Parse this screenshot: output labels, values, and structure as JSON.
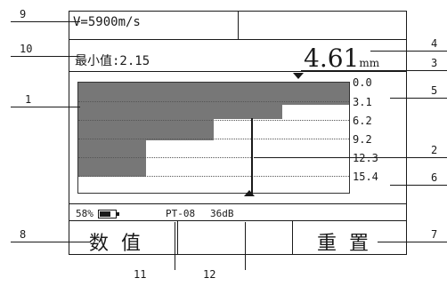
{
  "header": {
    "velocity": "V=5900m/s",
    "min_value": "最小值:2.15",
    "thickness_value": "4.61",
    "thickness_unit": "mm"
  },
  "scale": {
    "labels": [
      "0.0",
      "3.1",
      "6.2",
      "9.2",
      "12.3",
      "15.4"
    ]
  },
  "status": {
    "battery_percent": "58%",
    "probe": "PT-08",
    "gain": "36dB"
  },
  "softkeys": {
    "left": "数值",
    "right": "重置"
  },
  "callouts": {
    "n1": "1",
    "n2": "2",
    "n3": "3",
    "n4": "4",
    "n5": "5",
    "n6": "6",
    "n7": "7",
    "n8": "8",
    "n9": "9",
    "n10": "10",
    "n11": "11",
    "n12": "12"
  }
}
